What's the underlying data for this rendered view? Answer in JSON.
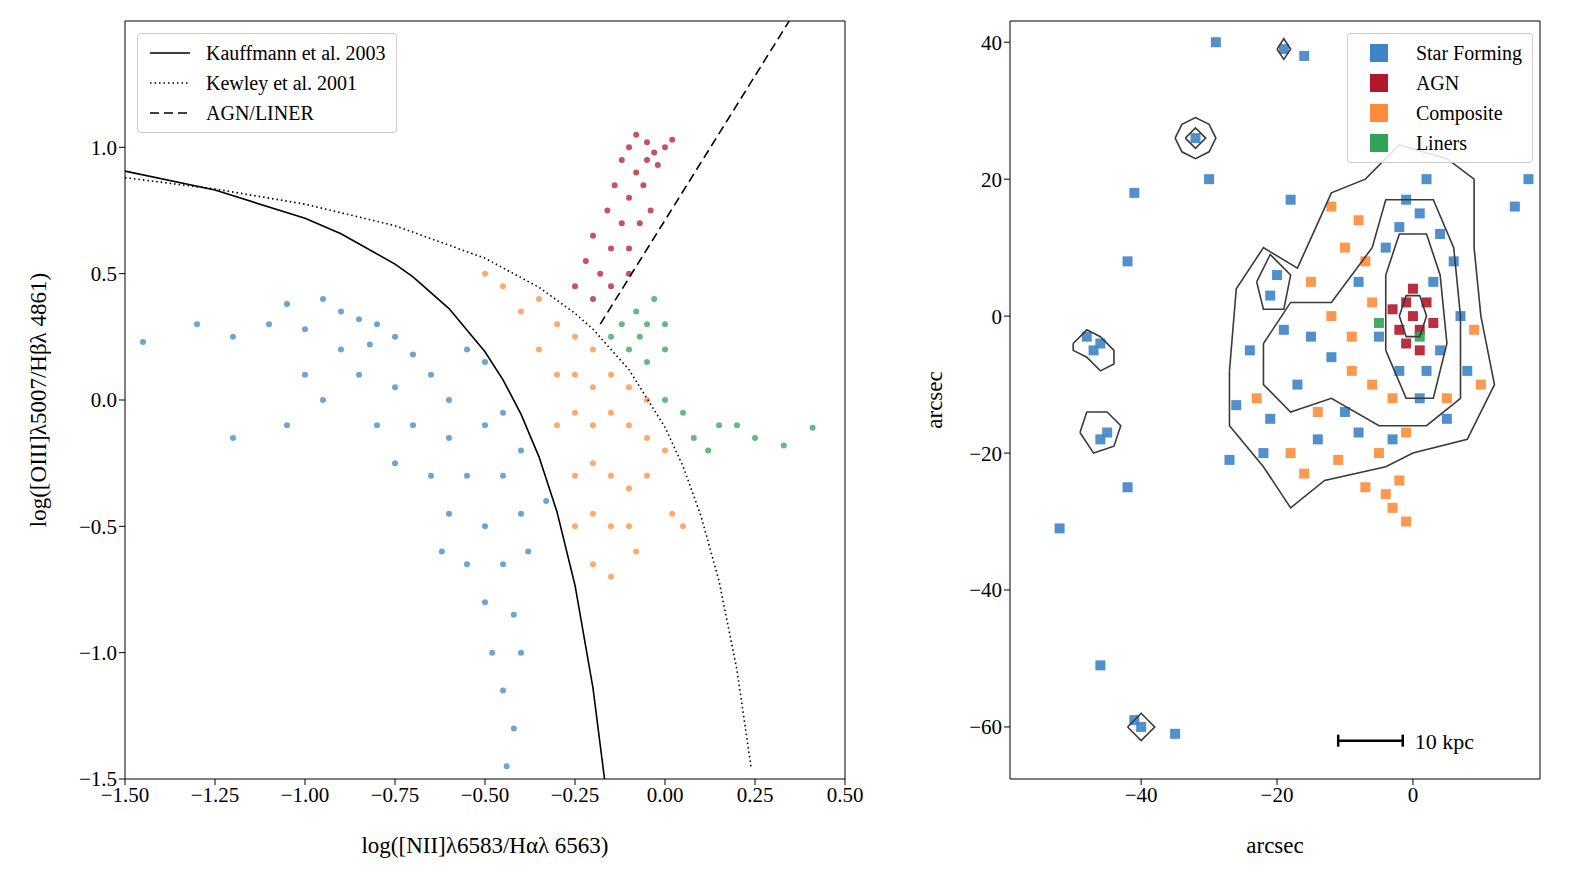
{
  "chart_data": [
    {
      "type": "scatter",
      "x_label": "log([NII]λ6583/Hαλ 6563)",
      "y_label": "log([OIII]λ5007/Hβλ 4861)",
      "xlim": [
        -1.5,
        0.5
      ],
      "ylim": [
        -1.5,
        1.5
      ],
      "xticks": [
        {
          "value": -1.5,
          "label": "−1.50"
        },
        {
          "value": -1.25,
          "label": "−1.25"
        },
        {
          "value": -1.0,
          "label": "−1.00"
        },
        {
          "value": -0.75,
          "label": "−0.75"
        },
        {
          "value": -0.5,
          "label": "−0.50"
        },
        {
          "value": -0.25,
          "label": "−0.25"
        },
        {
          "value": 0,
          "label": "0.00"
        },
        {
          "value": 0.25,
          "label": "0.25"
        },
        {
          "value": 0.5,
          "label": "0.50"
        }
      ],
      "yticks": [
        {
          "value": -1.5,
          "label": "−1.5"
        },
        {
          "value": -1.0,
          "label": "−1.0"
        },
        {
          "value": -0.5,
          "label": "−0.5"
        },
        {
          "value": 0,
          "label": "0.0"
        },
        {
          "value": 0.5,
          "label": "0.5"
        },
        {
          "value": 1.0,
          "label": "1.0"
        }
      ],
      "legend": "upper left",
      "series": [
        {
          "name": "Star Forming",
          "type": "scatter",
          "marker": "circle",
          "color": "#3d85c6",
          "x": [
            -1.2,
            -1.1,
            -1.05,
            -1.0,
            -0.95,
            -0.9,
            -0.85,
            -0.8,
            -0.82,
            -0.75,
            -0.7,
            -0.9,
            -1.0,
            -0.95,
            -0.85,
            -0.75,
            -0.65,
            -0.6,
            -0.55,
            -0.5,
            -0.8,
            -0.7,
            -0.6,
            -0.5,
            -0.45,
            -0.75,
            -0.65,
            -0.55,
            -0.45,
            -0.4,
            -0.6,
            -0.5,
            -0.4,
            -0.33,
            -0.55,
            -0.45,
            -0.38,
            -0.5,
            -0.42,
            -0.48,
            -0.4,
            -0.45,
            -0.42,
            -0.44,
            -1.3,
            -1.05,
            -1.2,
            -0.62,
            -1.45
          ],
          "y": [
            0.25,
            0.3,
            0.38,
            0.28,
            0.4,
            0.35,
            0.32,
            0.3,
            0.22,
            0.25,
            0.18,
            0.2,
            0.1,
            0.0,
            0.1,
            0.05,
            0.1,
            0.0,
            0.2,
            0.15,
            -0.1,
            -0.1,
            -0.15,
            -0.1,
            -0.05,
            -0.25,
            -0.3,
            -0.3,
            -0.3,
            -0.2,
            -0.45,
            -0.5,
            -0.45,
            -0.4,
            -0.65,
            -0.65,
            -0.6,
            -0.8,
            -0.85,
            -1.0,
            -1.0,
            -1.15,
            -1.3,
            -1.45,
            0.3,
            -0.1,
            -0.15,
            -0.6,
            0.23
          ]
        },
        {
          "name": "Composite",
          "type": "scatter",
          "marker": "circle",
          "color": "#fd8d3c",
          "x": [
            -0.35,
            -0.3,
            -0.25,
            -0.2,
            -0.3,
            -0.25,
            -0.2,
            -0.15,
            -0.1,
            -0.05,
            -0.3,
            -0.25,
            -0.2,
            -0.15,
            -0.1,
            -0.05,
            0.0,
            -0.25,
            -0.2,
            -0.15,
            -0.1,
            -0.05,
            -0.25,
            -0.2,
            -0.15,
            -0.1,
            -0.2,
            -0.15,
            -0.08,
            0.02,
            -0.45,
            -0.4,
            -0.35,
            -0.5,
            0.05
          ],
          "y": [
            0.4,
            0.3,
            0.25,
            0.2,
            0.1,
            0.1,
            0.05,
            0.1,
            0.05,
            0.0,
            -0.1,
            -0.05,
            -0.1,
            -0.05,
            -0.1,
            -0.15,
            -0.2,
            -0.3,
            -0.25,
            -0.3,
            -0.35,
            -0.3,
            -0.5,
            -0.45,
            -0.5,
            -0.5,
            -0.65,
            -0.7,
            -0.6,
            -0.45,
            0.45,
            0.35,
            0.2,
            0.5,
            -0.5
          ]
        },
        {
          "name": "AGN",
          "type": "scatter",
          "marker": "circle",
          "color": "#b2182b",
          "x": [
            -0.25,
            -0.2,
            -0.22,
            -0.18,
            -0.15,
            -0.2,
            -0.12,
            -0.16,
            -0.1,
            -0.14,
            -0.08,
            -0.12,
            -0.05,
            -0.1,
            -0.05,
            0.0,
            -0.08,
            0.02,
            -0.02,
            -0.06,
            -0.1,
            -0.07,
            -0.04,
            -0.15,
            -0.1,
            -0.03
          ],
          "y": [
            0.45,
            0.4,
            0.55,
            0.5,
            0.6,
            0.65,
            0.7,
            0.75,
            0.8,
            0.85,
            0.9,
            0.95,
            0.95,
            1.0,
            1.02,
            1.0,
            1.05,
            1.03,
            0.93,
            0.85,
            0.6,
            0.7,
            0.75,
            0.45,
            0.5,
            0.98
          ]
        },
        {
          "name": "Liners",
          "type": "scatter",
          "marker": "circle",
          "color": "#31a354",
          "x": [
            -0.15,
            -0.12,
            -0.1,
            -0.08,
            -0.05,
            -0.05,
            0.0,
            -0.03,
            0.0,
            0.05,
            0.08,
            0.12,
            0.15,
            0.2,
            0.25,
            0.33,
            0.41,
            0.0,
            -0.07
          ],
          "y": [
            0.25,
            0.3,
            0.2,
            0.35,
            0.3,
            0.15,
            0.2,
            0.4,
            0.0,
            -0.05,
            -0.15,
            -0.2,
            -0.1,
            -0.1,
            -0.15,
            -0.18,
            -0.11,
            0.3,
            0.25
          ]
        },
        {
          "name": "Kauffmann et al. 2003",
          "type": "line",
          "line_style": "solid",
          "color": "#000000",
          "x": [
            -1.5,
            -1.25,
            -1.0,
            -0.9,
            -0.75,
            -0.7,
            -0.6,
            -0.5,
            -0.45,
            -0.4,
            -0.35,
            -0.3,
            -0.25,
            -0.2,
            -0.168
          ],
          "y": [
            0.906,
            0.831,
            0.719,
            0.658,
            0.538,
            0.487,
            0.362,
            0.191,
            0.08,
            -0.056,
            -0.225,
            -0.443,
            -0.733,
            -1.14,
            -1.5
          ]
        },
        {
          "name": "Kewley et al. 2001",
          "type": "line",
          "line_style": "dotted",
          "color": "#000000",
          "x": [
            -1.5,
            -1.25,
            -1.0,
            -0.75,
            -0.5,
            -0.35,
            -0.25,
            -0.2,
            -0.1,
            0.0,
            0.05,
            0.1,
            0.15,
            0.2,
            0.24
          ],
          "y": [
            0.88,
            0.835,
            0.775,
            0.69,
            0.561,
            0.446,
            0.343,
            0.28,
            0.12,
            -0.108,
            -0.262,
            -0.459,
            -0.716,
            -1.069,
            -1.462
          ]
        },
        {
          "name": "AGN/LINER",
          "type": "line",
          "line_style": "dashed",
          "color": "#000000",
          "x": [
            -0.18,
            0.345
          ],
          "y": [
            0.3,
            1.5
          ]
        }
      ]
    },
    {
      "type": "scatter",
      "x_label": "arcsec",
      "y_label": "arcsec",
      "xlim": [
        -59.3,
        18.7
      ],
      "ylim": [
        -67.6,
        43.1
      ],
      "xticks": [
        {
          "value": -40,
          "label": "−40"
        },
        {
          "value": -20,
          "label": "−20"
        },
        0
      ],
      "yticks": [
        {
          "value": -60,
          "label": "−60"
        },
        {
          "value": -40,
          "label": "−40"
        },
        {
          "value": -20,
          "label": "−20"
        },
        0,
        20,
        40
      ],
      "legend": "upper right",
      "scale_bar": {
        "label": "10 kpc",
        "x": [
          -11,
          -1.5
        ],
        "y": -62
      },
      "series": [
        {
          "name": "Star Forming",
          "type": "scatter",
          "marker": "square",
          "color": "#3d85c6",
          "x": [
            -32,
            -19,
            -41,
            -47,
            -46,
            -48,
            -46,
            -45,
            -40,
            -41,
            -20,
            -21,
            -19,
            -24,
            -26,
            -17,
            -15,
            -10,
            -12,
            -5,
            -8,
            -4,
            3,
            4,
            7,
            5,
            1,
            -3,
            -8,
            -29,
            -16,
            17,
            15,
            -42,
            -27,
            -35,
            -52,
            -46,
            -42,
            1,
            -2,
            -30,
            -14,
            -22,
            -18,
            -21,
            2,
            -2,
            2,
            6,
            -1,
            4,
            8
          ],
          "y": [
            26,
            39,
            18,
            -5,
            -4,
            -3,
            -18,
            -17,
            -60,
            -59,
            6,
            3,
            -2,
            -5,
            -13,
            -10,
            -3,
            -14,
            -6,
            -3,
            5,
            10,
            5,
            -5,
            0,
            -15,
            -12,
            -18,
            -17,
            40,
            38,
            20,
            16,
            8,
            -21,
            -61,
            -31,
            -51,
            -25,
            15,
            13,
            20,
            -18,
            -20,
            17,
            -15,
            20,
            -8,
            -8,
            8,
            17,
            12,
            -8
          ]
        },
        {
          "name": "AGN",
          "type": "scatter",
          "marker": "square",
          "color": "#b2182b",
          "x": [
            0,
            -1,
            1,
            2,
            -2,
            0,
            1,
            -1,
            3,
            -3
          ],
          "y": [
            0,
            2,
            -2,
            2,
            -2,
            4,
            -5,
            -4,
            -1,
            1
          ]
        },
        {
          "name": "Composite",
          "type": "scatter",
          "marker": "square",
          "color": "#fd8d3c",
          "x": [
            -7,
            -6,
            -9,
            -12,
            -10,
            -15,
            -3,
            -1,
            -5,
            -2,
            -4,
            -14,
            -18,
            -16,
            -8,
            -12,
            9,
            5,
            -23,
            -9,
            -6,
            -3,
            10,
            -11,
            -7,
            -1
          ],
          "y": [
            8,
            2,
            -3,
            0,
            10,
            5,
            -12,
            -17,
            -20,
            -24,
            -26,
            -14,
            -20,
            -23,
            14,
            16,
            -2,
            -12,
            -12,
            -8,
            -10,
            -28,
            -10,
            -21,
            -25,
            -30
          ]
        },
        {
          "name": "Liners",
          "type": "scatter",
          "marker": "square",
          "color": "#31a354",
          "x": [
            -5,
            1
          ],
          "y": [
            -1,
            -3
          ]
        },
        {
          "type": "line",
          "line_style": "solid",
          "color": "#3a3a3a",
          "x": [
            -35,
            -34,
            -32,
            -30,
            -29,
            -30,
            -32,
            -34,
            -35
          ],
          "y": [
            26,
            28,
            29,
            28,
            26,
            24,
            23,
            24,
            26
          ]
        },
        {
          "type": "line",
          "line_style": "solid",
          "color": "#3a3a3a",
          "x": [
            -33.5,
            -32,
            -30.5,
            -32,
            -33.5
          ],
          "y": [
            26,
            27.5,
            26,
            24.5,
            26
          ]
        },
        {
          "type": "line",
          "line_style": "solid",
          "color": "#3a3a3a",
          "x": [
            -50,
            -48,
            -46,
            -44,
            -44,
            -46,
            -48,
            -50,
            -50
          ],
          "y": [
            -4,
            -2,
            -3,
            -5,
            -7,
            -8,
            -6,
            -5,
            -4
          ]
        },
        {
          "type": "line",
          "line_style": "solid",
          "color": "#3a3a3a",
          "x": [
            -49,
            -48,
            -45,
            -43,
            -44,
            -47,
            -49
          ],
          "y": [
            -17,
            -14,
            -14,
            -16,
            -19,
            -20,
            -17
          ]
        },
        {
          "type": "line",
          "line_style": "solid",
          "color": "#3a3a3a",
          "x": [
            -42,
            -40,
            -38,
            -40,
            -42
          ],
          "y": [
            -60,
            -58,
            -60,
            -62,
            -60
          ]
        },
        {
          "type": "line",
          "line_style": "solid",
          "color": "#3a3a3a",
          "x": [
            -27,
            -26,
            -22,
            -17,
            -12,
            -7,
            -2,
            5,
            9,
            9,
            10,
            12,
            8,
            0,
            -4,
            -13,
            -18,
            -22,
            -27,
            -27
          ],
          "y": [
            -8,
            4,
            10,
            7,
            18,
            20,
            25,
            23,
            20,
            10,
            0,
            -10,
            -18,
            -20,
            -22,
            -24,
            -28,
            -22,
            -16,
            -8
          ]
        },
        {
          "type": "line",
          "line_style": "solid",
          "color": "#3a3a3a",
          "x": [
            -22,
            -18,
            -12,
            -6,
            -4,
            3,
            6,
            7,
            7,
            2,
            -5,
            -12,
            -18,
            -22,
            -22
          ],
          "y": [
            -4,
            2,
            2,
            10,
            17,
            17,
            10,
            0,
            -12,
            -16,
            -16,
            -12,
            -14,
            -10,
            -4
          ]
        },
        {
          "type": "line",
          "line_style": "solid",
          "color": "#3a3a3a",
          "x": [
            -4,
            -4,
            -2,
            2,
            4,
            5,
            3,
            -1,
            -4
          ],
          "y": [
            -5,
            6,
            12,
            12,
            6,
            -4,
            -12,
            -12,
            -5
          ]
        },
        {
          "type": "line",
          "line_style": "solid",
          "color": "#3a3a3a",
          "x": [
            -2,
            -1,
            1,
            2,
            1,
            -1,
            -2
          ],
          "y": [
            0,
            3,
            3,
            0,
            -3,
            -3,
            0
          ]
        },
        {
          "type": "line",
          "line_style": "solid",
          "color": "#3a3a3a",
          "x": [
            -20,
            -19,
            -18,
            -19,
            -20
          ],
          "y": [
            39,
            40.5,
            39,
            37.5,
            39
          ]
        },
        {
          "type": "line",
          "line_style": "solid",
          "color": "#3a3a3a",
          "x": [
            -23,
            -21,
            -18,
            -19,
            -22,
            -23
          ],
          "y": [
            5,
            9,
            6,
            1,
            1,
            5
          ]
        }
      ]
    }
  ]
}
